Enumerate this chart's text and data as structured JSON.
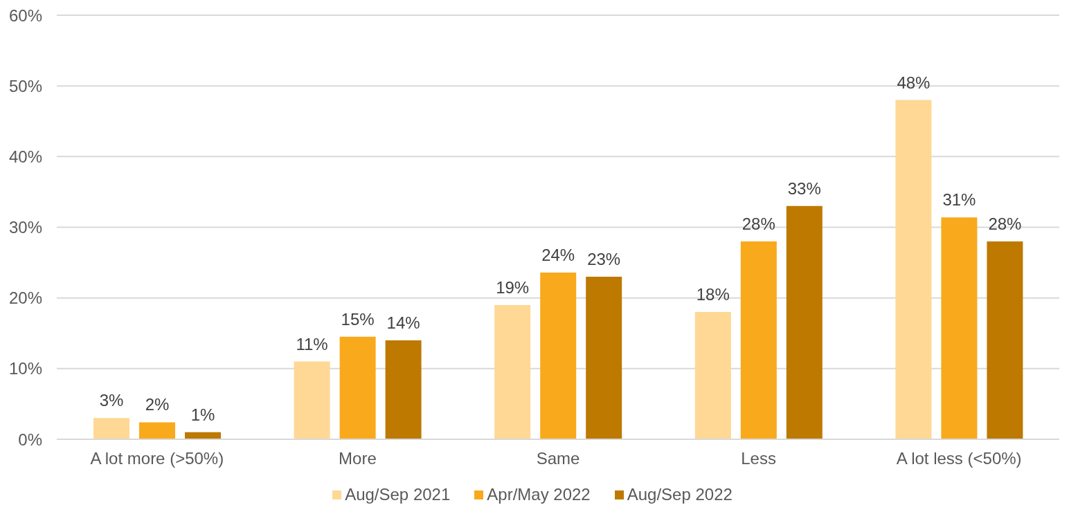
{
  "chart_data": {
    "type": "bar",
    "categories": [
      "A lot more (>50%)",
      "More",
      "Same",
      "Less",
      "A lot less (<50%)"
    ],
    "series": [
      {
        "name": "Aug/Sep 2021",
        "color": "#fed894",
        "values": [
          3,
          11,
          19,
          18,
          48
        ],
        "value_labels": [
          "3%",
          "11%",
          "19%",
          "18%",
          "48%"
        ]
      },
      {
        "name": "Apr/May 2022",
        "color": "#f9a91c",
        "values": [
          2.4,
          14.5,
          23.6,
          28,
          31.4
        ],
        "value_labels": [
          "2%",
          "15%",
          "24%",
          "28%",
          "31%"
        ]
      },
      {
        "name": "Aug/Sep 2022",
        "color": "#bd7900",
        "values": [
          1,
          14,
          23,
          33,
          28
        ],
        "value_labels": [
          "1%",
          "14%",
          "23%",
          "33%",
          "28%"
        ]
      }
    ],
    "ylim": [
      0,
      60
    ],
    "yticks": [
      {
        "value": 0,
        "label": "0%"
      },
      {
        "value": 10,
        "label": "10%"
      },
      {
        "value": 20,
        "label": "20%"
      },
      {
        "value": 30,
        "label": "30%"
      },
      {
        "value": 40,
        "label": "40%"
      },
      {
        "value": 50,
        "label": "50%"
      },
      {
        "value": 60,
        "label": "60%"
      }
    ],
    "grid": "y",
    "legend": "bottom"
  }
}
